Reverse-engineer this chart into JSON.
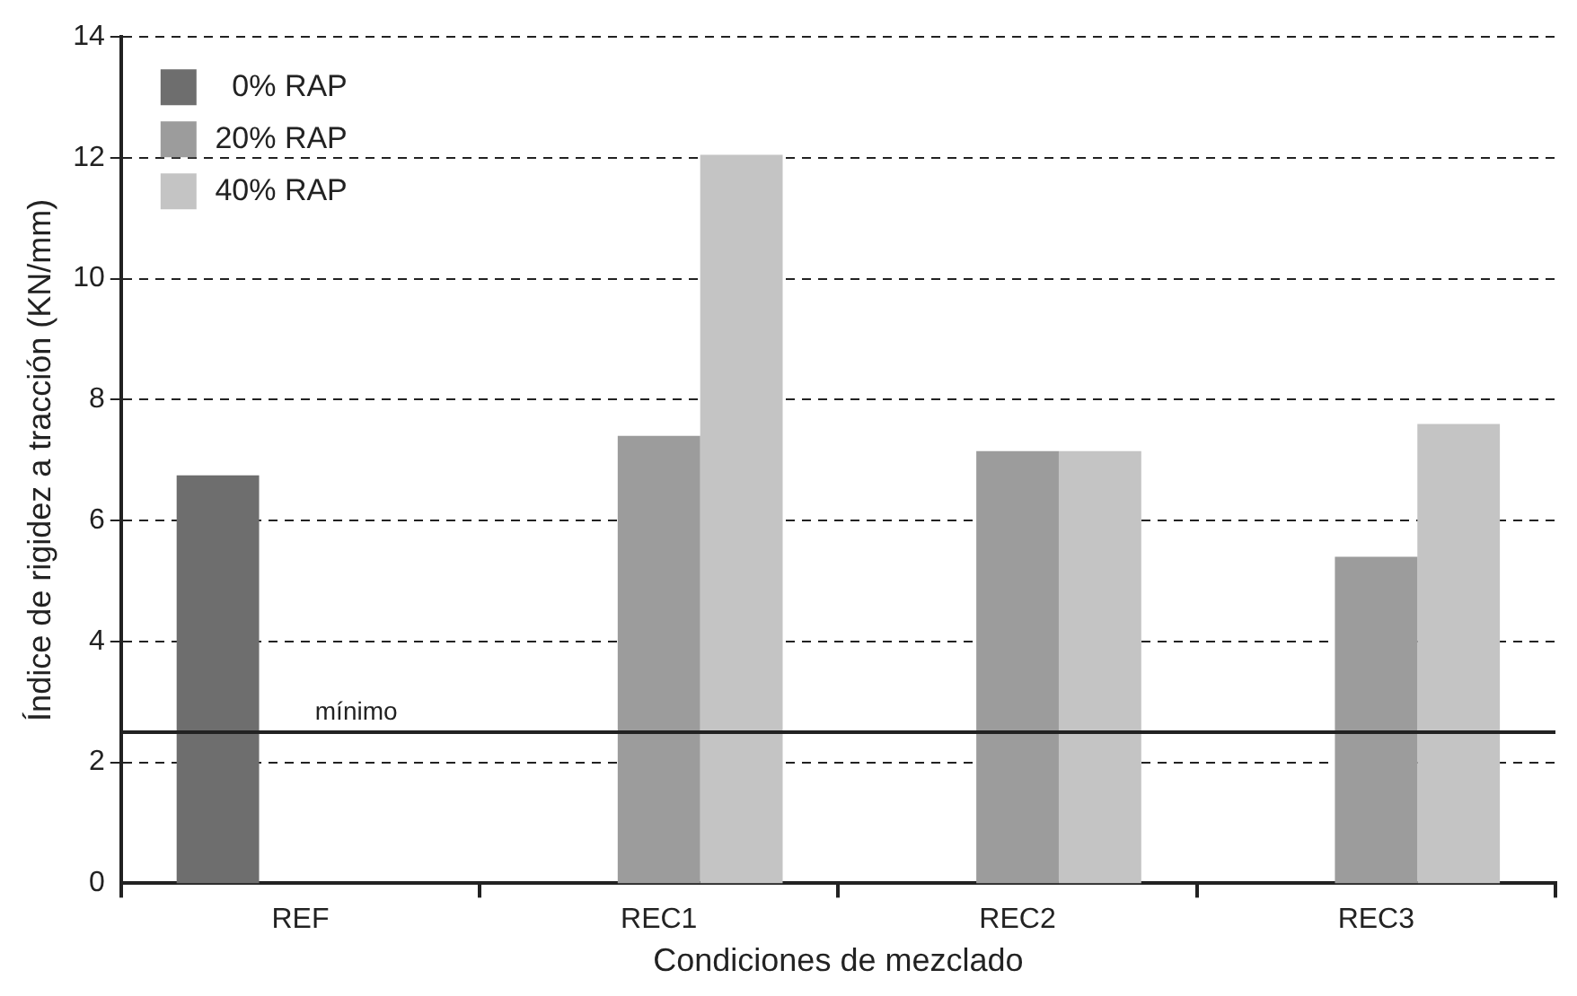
{
  "chart_data": {
    "type": "bar",
    "xlabel": "Condiciones de mezclado",
    "ylabel": "Índice de rigidez a tracción (KN/mm)",
    "categories": [
      "REF",
      "REC1",
      "REC2",
      "REC3"
    ],
    "series": [
      {
        "name": "0% RAP",
        "color": "#6e6e6e",
        "values": [
          6.75,
          null,
          null,
          null
        ]
      },
      {
        "name": "20% RAP",
        "color": "#9c9c9c",
        "values": [
          null,
          7.4,
          7.15,
          5.4
        ]
      },
      {
        "name": "40% RAP",
        "color": "#c4c4c4",
        "values": [
          null,
          12.05,
          7.15,
          7.6
        ]
      }
    ],
    "ylim": [
      0,
      14
    ],
    "yticks": [
      0,
      2,
      4,
      6,
      8,
      10,
      12,
      14
    ],
    "grid": "y",
    "legend": "top left",
    "ref_lines": [
      {
        "axis": "y",
        "value": 2.5,
        "label": "mínimo",
        "color": "#222222"
      }
    ]
  }
}
